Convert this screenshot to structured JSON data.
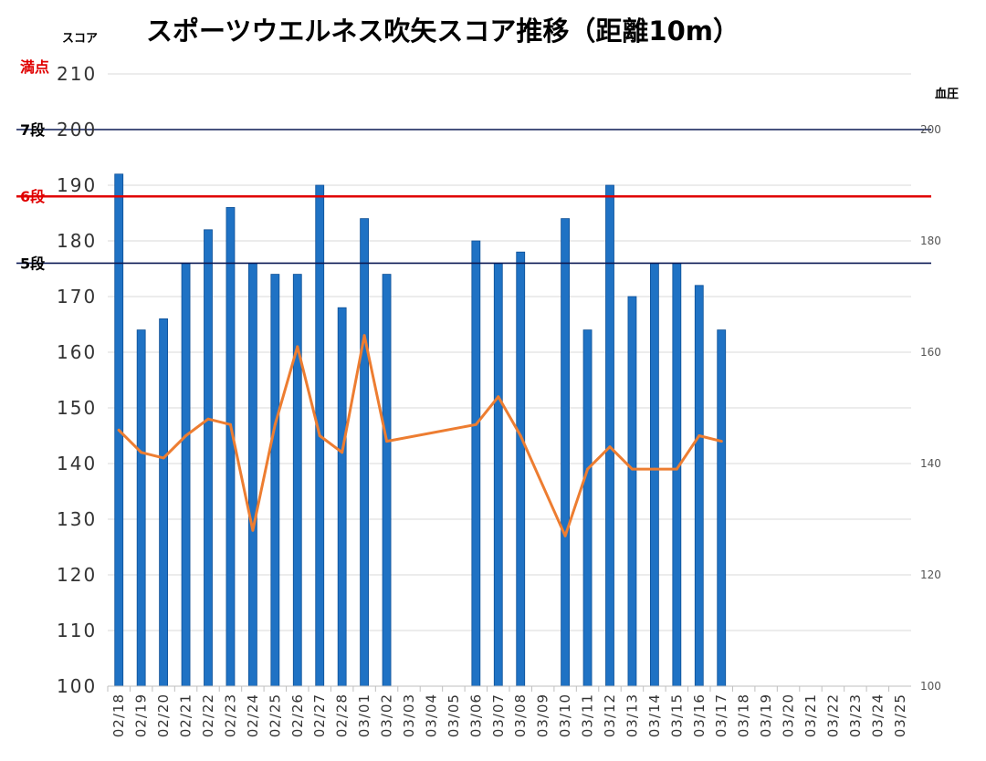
{
  "chart_data": {
    "type": "bar",
    "title": "スポーツウエルネス吹矢スコア推移（距離10m）",
    "ylabel": "スコア",
    "y2label": "血圧",
    "ylim": [
      100,
      210
    ],
    "yticks": [
      100,
      110,
      120,
      130,
      140,
      150,
      160,
      170,
      180,
      190,
      200,
      210
    ],
    "y2lim": [
      100,
      210
    ],
    "y2ticks": [
      100,
      120,
      140,
      160,
      180,
      200
    ],
    "grid": true,
    "categories": [
      "02/18",
      "02/19",
      "02/20",
      "02/21",
      "02/22",
      "02/23",
      "02/24",
      "02/25",
      "02/26",
      "02/27",
      "02/28",
      "03/01",
      "03/02",
      "03/03",
      "03/04",
      "03/05",
      "03/06",
      "03/07",
      "03/08",
      "03/09",
      "03/10",
      "03/11",
      "03/12",
      "03/13",
      "03/14",
      "03/15",
      "03/16",
      "03/17",
      "03/18",
      "03/19",
      "03/20",
      "03/21",
      "03/22",
      "03/23",
      "03/24",
      "03/25"
    ],
    "series": [
      {
        "type": "bar",
        "axis": "left",
        "color": "#1f72c4",
        "values": [
          192,
          164,
          166,
          176,
          182,
          186,
          176,
          174,
          174,
          190,
          168,
          184,
          174,
          null,
          null,
          null,
          180,
          176,
          178,
          null,
          184,
          164,
          190,
          170,
          176,
          176,
          172,
          164,
          null,
          null,
          null,
          null,
          null,
          null,
          null,
          null
        ]
      },
      {
        "type": "line",
        "axis": "right",
        "color": "#ed7d31",
        "values": [
          146,
          142,
          141,
          145,
          148,
          147,
          128,
          147,
          161,
          145,
          142,
          163,
          144,
          null,
          null,
          null,
          147,
          152,
          145,
          null,
          127,
          139,
          143,
          139,
          139,
          139,
          145,
          144,
          null,
          null,
          null,
          null,
          null,
          null,
          null,
          null
        ]
      }
    ],
    "reference_lines": [
      {
        "label": "満点",
        "value": 210,
        "color": "#e00000",
        "line": false
      },
      {
        "label": "7段",
        "value": 200,
        "color": "#000000",
        "line_color": "#0b1a55",
        "line": true
      },
      {
        "label": "6段",
        "value": 188,
        "color": "#e00000",
        "line_color": "#e00000",
        "line": true
      },
      {
        "label": "5段",
        "value": 176,
        "color": "#000000",
        "line_color": "#0b1a55",
        "line": true
      }
    ]
  }
}
